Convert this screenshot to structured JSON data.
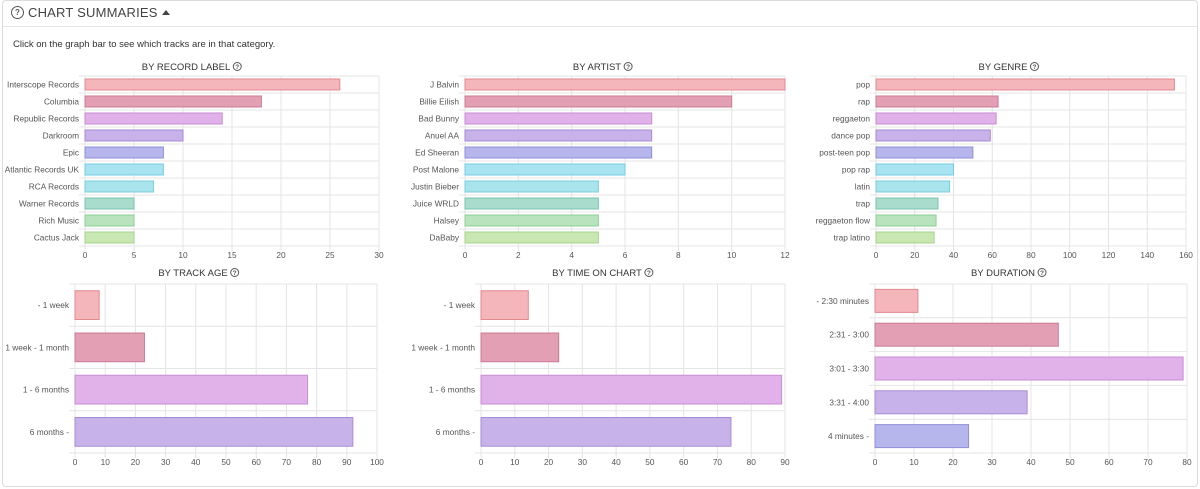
{
  "header": {
    "title": "CHART SUMMARIES",
    "help_icon": "question-circle-icon",
    "toggle_icon": "caret-up-icon"
  },
  "instruction": "Click on the graph bar to see which tracks are in that category.",
  "colors": {
    "palette": [
      "#f4b6ba",
      "#e3a0b4",
      "#e1b1e9",
      "#c7b2ea",
      "#b7b6ec",
      "#a8e3f1",
      "#a9e4ec",
      "#a9dccd",
      "#b9e3bd",
      "#c9e7b2"
    ],
    "borders": [
      "#e3888f",
      "#cc7a92",
      "#c98bd6",
      "#a98ad6",
      "#8f8ed8",
      "#76cde3",
      "#78cfdc",
      "#79c4ac",
      "#8ccf93",
      "#a3d389"
    ],
    "grid": "#e4e4e4"
  },
  "chart_data": [
    {
      "type": "bar",
      "orientation": "horizontal",
      "title": "BY RECORD LABEL",
      "categories": [
        "Interscope Records",
        "Columbia",
        "Republic Records",
        "Darkroom",
        "Epic",
        "Atlantic Records UK",
        "RCA Records",
        "Warner Records",
        "Rich Music",
        "Cactus Jack"
      ],
      "values": [
        26,
        18,
        14,
        10,
        8,
        8,
        7,
        5,
        5,
        5
      ],
      "xlim": [
        0,
        30
      ],
      "xticks": [
        0,
        5,
        10,
        15,
        20,
        25,
        30
      ],
      "grid": true
    },
    {
      "type": "bar",
      "orientation": "horizontal",
      "title": "BY ARTIST",
      "categories": [
        "J Balvin",
        "Billie Eilish",
        "Bad Bunny",
        "Anuel AA",
        "Ed Sheeran",
        "Post Malone",
        "Justin Bieber",
        "Juice WRLD",
        "Halsey",
        "DaBaby"
      ],
      "values": [
        12,
        10,
        7,
        7,
        7,
        6,
        5,
        5,
        5,
        5
      ],
      "xlim": [
        0,
        12
      ],
      "xticks": [
        0,
        2,
        4,
        6,
        8,
        10,
        12
      ],
      "grid": true
    },
    {
      "type": "bar",
      "orientation": "horizontal",
      "title": "BY GENRE",
      "categories": [
        "pop",
        "rap",
        "reggaeton",
        "dance pop",
        "post-teen pop",
        "pop rap",
        "latin",
        "trap",
        "reggaeton flow",
        "trap latino"
      ],
      "values": [
        154,
        63,
        62,
        59,
        50,
        40,
        38,
        32,
        31,
        30
      ],
      "xlim": [
        0,
        160
      ],
      "xticks": [
        0,
        20,
        40,
        60,
        80,
        100,
        120,
        140,
        160
      ],
      "grid": true
    },
    {
      "type": "bar",
      "orientation": "horizontal",
      "title": "BY TRACK AGE",
      "categories": [
        "- 1 week",
        "1 week - 1 month",
        "1 - 6 months",
        "6 months -"
      ],
      "values": [
        8,
        23,
        77,
        92
      ],
      "xlim": [
        0,
        100
      ],
      "xticks": [
        0,
        10,
        20,
        30,
        40,
        50,
        60,
        70,
        80,
        90,
        100
      ],
      "grid": true
    },
    {
      "type": "bar",
      "orientation": "horizontal",
      "title": "BY TIME ON CHART",
      "categories": [
        "- 1 week",
        "1 week - 1 month",
        "1 - 6 months",
        "6 months -"
      ],
      "values": [
        14,
        23,
        89,
        74
      ],
      "xlim": [
        0,
        90
      ],
      "xticks": [
        0,
        10,
        20,
        30,
        40,
        50,
        60,
        70,
        80,
        90
      ],
      "grid": true
    },
    {
      "type": "bar",
      "orientation": "horizontal",
      "title": "BY DURATION",
      "categories": [
        "- 2:30 minutes",
        "2:31 - 3:00",
        "3:01 - 3:30",
        "3:31 - 4:00",
        "4 minutes -"
      ],
      "values": [
        11,
        47,
        79,
        39,
        24
      ],
      "xlim": [
        0,
        80
      ],
      "xticks": [
        0,
        10,
        20,
        30,
        40,
        50,
        60,
        70,
        80
      ],
      "grid": true
    }
  ]
}
